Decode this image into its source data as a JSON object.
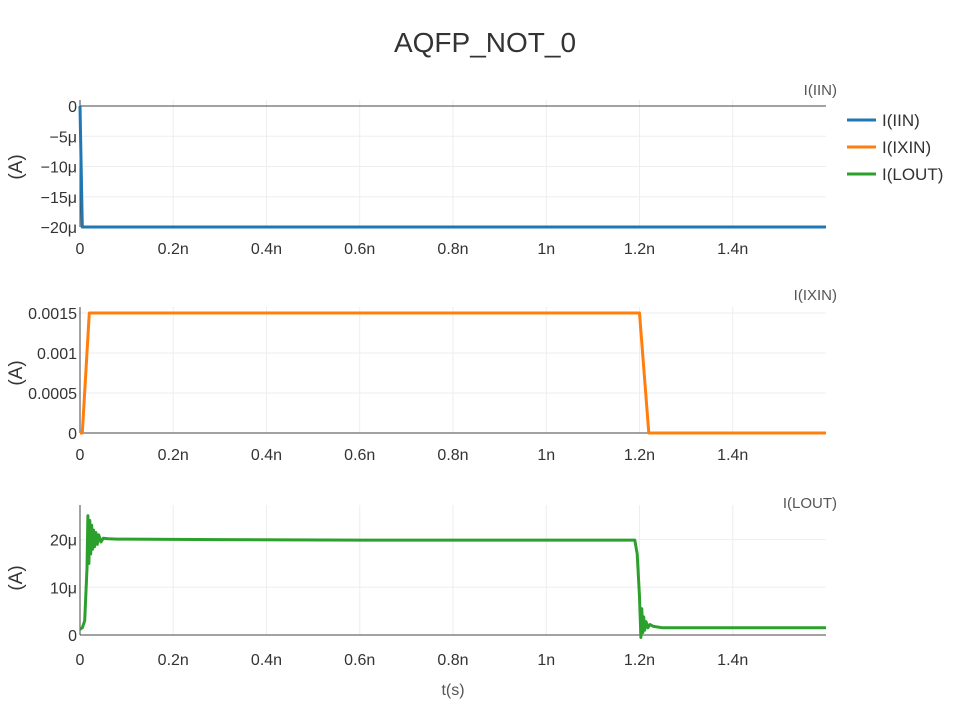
{
  "chart_data": {
    "type": "line",
    "title": "AQFP_NOT_0",
    "xlabel": "t(s)",
    "x_range": [
      0,
      1.6e-09
    ],
    "x_ticks": [
      {
        "v": 0,
        "label": "0"
      },
      {
        "v": 2e-10,
        "label": "0.2n"
      },
      {
        "v": 4e-10,
        "label": "0.4n"
      },
      {
        "v": 6e-10,
        "label": "0.6n"
      },
      {
        "v": 8e-10,
        "label": "0.8n"
      },
      {
        "v": 1e-09,
        "label": "1n"
      },
      {
        "v": 1.2e-09,
        "label": "1.2n"
      },
      {
        "v": 1.4e-09,
        "label": "1.4n"
      }
    ],
    "legend": {
      "placement": "top-right",
      "items": [
        {
          "label": "I(IIN)",
          "color": "#1f77b4"
        },
        {
          "label": "I(IXIN)",
          "color": "#ff7f0e"
        },
        {
          "label": "I(LOUT)",
          "color": "#2ca02c"
        }
      ]
    },
    "subplots": [
      {
        "label": "I(IIN)",
        "ylabel": "(A)",
        "color": "#1f77b4",
        "ylim": [
          -2e-05,
          0
        ],
        "y_ticks": [
          {
            "v": 0,
            "label": "0"
          },
          {
            "v": -5e-06,
            "label": "−5μ"
          },
          {
            "v": -1e-05,
            "label": "−10μ"
          },
          {
            "v": -1.5e-05,
            "label": "−15μ"
          },
          {
            "v": -2e-05,
            "label": "−20μ"
          }
        ],
        "x": [
          0,
          5e-12,
          1.6e-09
        ],
        "y": [
          0,
          -2e-05,
          -2e-05
        ]
      },
      {
        "label": "I(IXIN)",
        "ylabel": "(A)",
        "color": "#ff7f0e",
        "ylim": [
          0,
          0.0015
        ],
        "y_ticks": [
          {
            "v": 0,
            "label": "0"
          },
          {
            "v": 0.0005,
            "label": "0.0005"
          },
          {
            "v": 0.001,
            "label": "0.001"
          },
          {
            "v": 0.0015,
            "label": "0.0015"
          }
        ],
        "x": [
          0,
          5e-12,
          2e-11,
          1.2e-09,
          1.22e-09,
          1.6e-09
        ],
        "y": [
          0,
          0,
          0.0015,
          0.0015,
          0,
          0
        ]
      },
      {
        "label": "I(LOUT)",
        "ylabel": "(A)",
        "color": "#2ca02c",
        "ylim": [
          0,
          2.6e-05
        ],
        "y_ticks": [
          {
            "v": 0,
            "label": "0"
          },
          {
            "v": 1e-05,
            "label": "10μ"
          },
          {
            "v": 2e-05,
            "label": "20μ"
          }
        ],
        "x": [
          0,
          5e-12,
          1e-11,
          1.5e-11,
          1.7e-11,
          1.9e-11,
          2.1e-11,
          2.3e-11,
          2.5e-11,
          2.7e-11,
          2.9e-11,
          3.1e-11,
          3.4e-11,
          3.7e-11,
          4e-11,
          4.5e-11,
          5e-11,
          6e-11,
          8e-11,
          3e-10,
          6e-10,
          1e-09,
          1.19e-09,
          1.195e-09,
          1.2e-09,
          1.203e-09,
          1.205e-09,
          1.207e-09,
          1.209e-09,
          1.211e-09,
          1.214e-09,
          1.218e-09,
          1.222e-09,
          1.23e-09,
          1.25e-09,
          1.4e-09,
          1.6e-09
        ],
        "y": [
          1.2e-06,
          1.5e-06,
          3e-06,
          1.4e-05,
          2.5e-05,
          1.5e-05,
          2.4e-05,
          1.7e-05,
          2.3e-05,
          1.8e-05,
          2.2e-05,
          1.85e-05,
          2.15e-05,
          1.9e-05,
          2.1e-05,
          1.95e-05,
          2.03e-05,
          2.02e-05,
          2.01e-05,
          2e-05,
          1.99e-05,
          1.99e-05,
          1.99e-05,
          1.7e-05,
          8e-06,
          -5e-07,
          5.5e-06,
          5e-07,
          3.8e-06,
          1e-06,
          2.8e-06,
          1.5e-06,
          2.2e-06,
          1.8e-06,
          1.5e-06,
          1.5e-06,
          1.5e-06
        ]
      }
    ]
  }
}
